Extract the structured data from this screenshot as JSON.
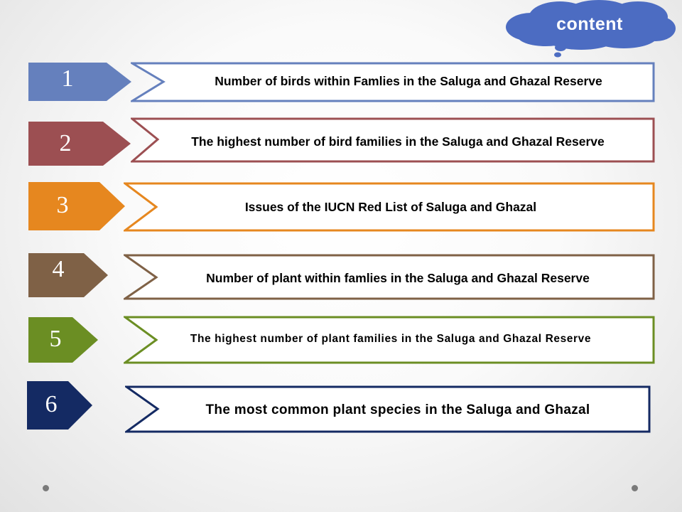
{
  "header": {
    "badge_label": "content"
  },
  "items": [
    {
      "number": "1",
      "text": "Number of birds within Famlies in the Saluga and Ghazal Reserve",
      "color": "#6580bd"
    },
    {
      "number": "2",
      "text": "The highest number of bird families in the Saluga and Ghazal Reserve",
      "color": "#9c4f52"
    },
    {
      "number": "3",
      "text": "Issues of the IUCN Red List of Saluga and Ghazal",
      "color": "#e6871f"
    },
    {
      "number": "4",
      "text": "Number of plant within famlies in the Saluga and Ghazal Reserve",
      "color": "#7f6146"
    },
    {
      "number": "5",
      "text": "The highest number of plant families in the Saluga and Ghazal Reserve",
      "color": "#6b8e23"
    },
    {
      "number": "6",
      "text": "The most common plant species in the Saluga and Ghazal",
      "color": "#142a63"
    }
  ]
}
